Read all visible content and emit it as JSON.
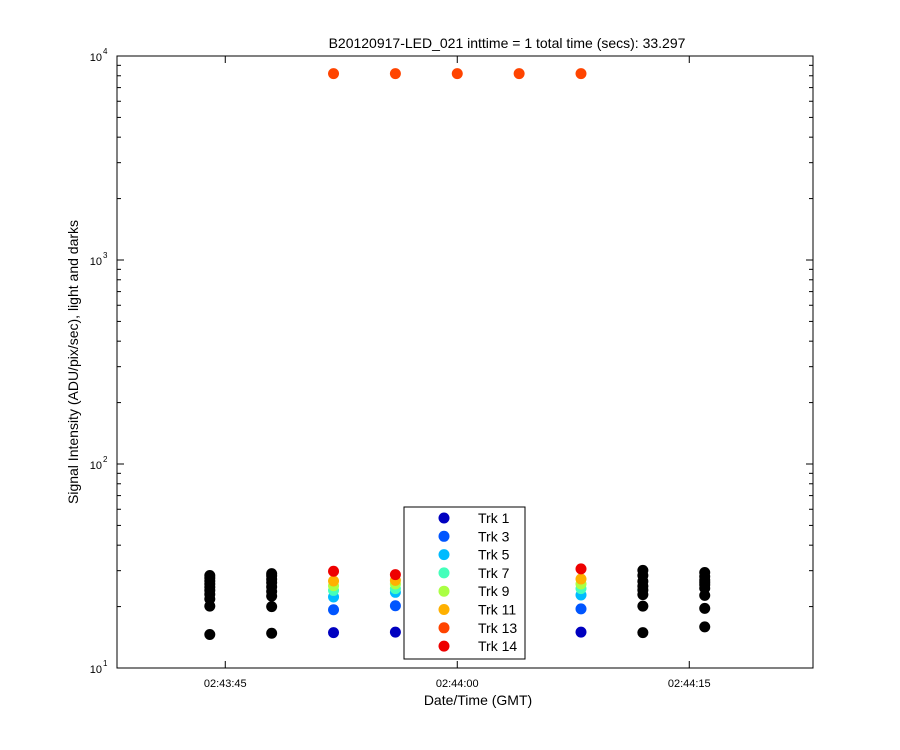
{
  "chart_data": {
    "type": "scatter",
    "title": "B20120917-LED_021 inttime = 1 total time (secs): 33.297",
    "xlabel": "Date/Time (GMT)",
    "ylabel": "Signal Intensity (ADU/pix/sec), light and darks",
    "y_scale": "log",
    "ylim": [
      10,
      10000
    ],
    "xlim": [
      "02:43:38",
      "02:44:23"
    ],
    "x_ticks": [
      "02:43:45",
      "02:44:00",
      "02:44:15"
    ],
    "y_ticks": [
      {
        "value": 10,
        "base": "10",
        "exp": "1"
      },
      {
        "value": 100,
        "base": "10",
        "exp": "2"
      },
      {
        "value": 1000,
        "base": "10",
        "exp": "3"
      },
      {
        "value": 10000,
        "base": "10",
        "exp": "4"
      }
    ],
    "grid": false,
    "legend_position": "bottom-center",
    "series": [
      {
        "name": "Trk 1",
        "color": "#0000c0",
        "points": [
          [
            "02:43:52",
            14.9
          ],
          [
            "02:43:56",
            15.0
          ],
          [
            "02:44:08",
            15.0
          ]
        ]
      },
      {
        "name": "Trk 3",
        "color": "#0055ff",
        "points": [
          [
            "02:43:52",
            19.3
          ],
          [
            "02:43:56",
            20.2
          ],
          [
            "02:44:08",
            19.5
          ]
        ]
      },
      {
        "name": "Trk 5",
        "color": "#00bbff",
        "points": [
          [
            "02:43:52",
            22.3
          ],
          [
            "02:43:56",
            23.5
          ],
          [
            "02:44:08",
            22.8
          ]
        ]
      },
      {
        "name": "Trk 7",
        "color": "#44ffbb",
        "points": [
          [
            "02:43:52",
            24.0
          ],
          [
            "02:43:56",
            24.5
          ],
          [
            "02:44:08",
            24.5
          ]
        ]
      },
      {
        "name": "Trk 9",
        "color": "#aaff44",
        "points": [
          [
            "02:43:52",
            25.3
          ],
          [
            "02:43:56",
            25.8
          ],
          [
            "02:44:08",
            25.8
          ]
        ]
      },
      {
        "name": "Trk 11",
        "color": "#ffb000",
        "points": [
          [
            "02:43:52",
            26.7
          ],
          [
            "02:43:56",
            26.9
          ],
          [
            "02:44:08",
            27.3
          ]
        ]
      },
      {
        "name": "Trk 13",
        "color": "#ff4400",
        "points": [
          [
            "02:43:52",
            8200
          ],
          [
            "02:43:56",
            8200
          ],
          [
            "02:44:00",
            8200
          ],
          [
            "02:44:04",
            8200
          ],
          [
            "02:44:08",
            8200
          ]
        ]
      },
      {
        "name": "Trk 14",
        "color": "#ee0000",
        "points": [
          [
            "02:43:52",
            29.8
          ],
          [
            "02:43:56",
            28.7
          ],
          [
            "02:44:08",
            30.6
          ]
        ]
      }
    ],
    "dark_points": {
      "color": "#000000",
      "points": [
        [
          "02:43:44",
          14.6
        ],
        [
          "02:43:44",
          20.1
        ],
        [
          "02:43:44",
          21.8
        ],
        [
          "02:43:44",
          23.0
        ],
        [
          "02:43:44",
          24.0
        ],
        [
          "02:43:44",
          24.9
        ],
        [
          "02:43:44",
          25.8
        ],
        [
          "02:43:44",
          26.7
        ],
        [
          "02:43:44",
          27.6
        ],
        [
          "02:43:44",
          28.4
        ],
        [
          "02:43:48",
          14.8
        ],
        [
          "02:43:48",
          20.0
        ],
        [
          "02:43:48",
          22.5
        ],
        [
          "02:43:48",
          23.7
        ],
        [
          "02:43:48",
          25.0
        ],
        [
          "02:43:48",
          26.2
        ],
        [
          "02:43:48",
          27.2
        ],
        [
          "02:43:48",
          28.3
        ],
        [
          "02:43:48",
          29.0
        ],
        [
          "02:44:12",
          14.9
        ],
        [
          "02:44:12",
          20.1
        ],
        [
          "02:44:12",
          22.9
        ],
        [
          "02:44:12",
          24.1
        ],
        [
          "02:44:12",
          25.2
        ],
        [
          "02:44:12",
          26.6
        ],
        [
          "02:44:12",
          28.4
        ],
        [
          "02:44:12",
          30.1
        ],
        [
          "02:44:16",
          15.9
        ],
        [
          "02:44:16",
          19.6
        ],
        [
          "02:44:16",
          22.7
        ],
        [
          "02:44:16",
          24.6
        ],
        [
          "02:44:16",
          25.6
        ],
        [
          "02:44:16",
          26.3
        ],
        [
          "02:44:16",
          27.0
        ],
        [
          "02:44:16",
          28.1
        ],
        [
          "02:44:16",
          29.4
        ]
      ]
    }
  }
}
